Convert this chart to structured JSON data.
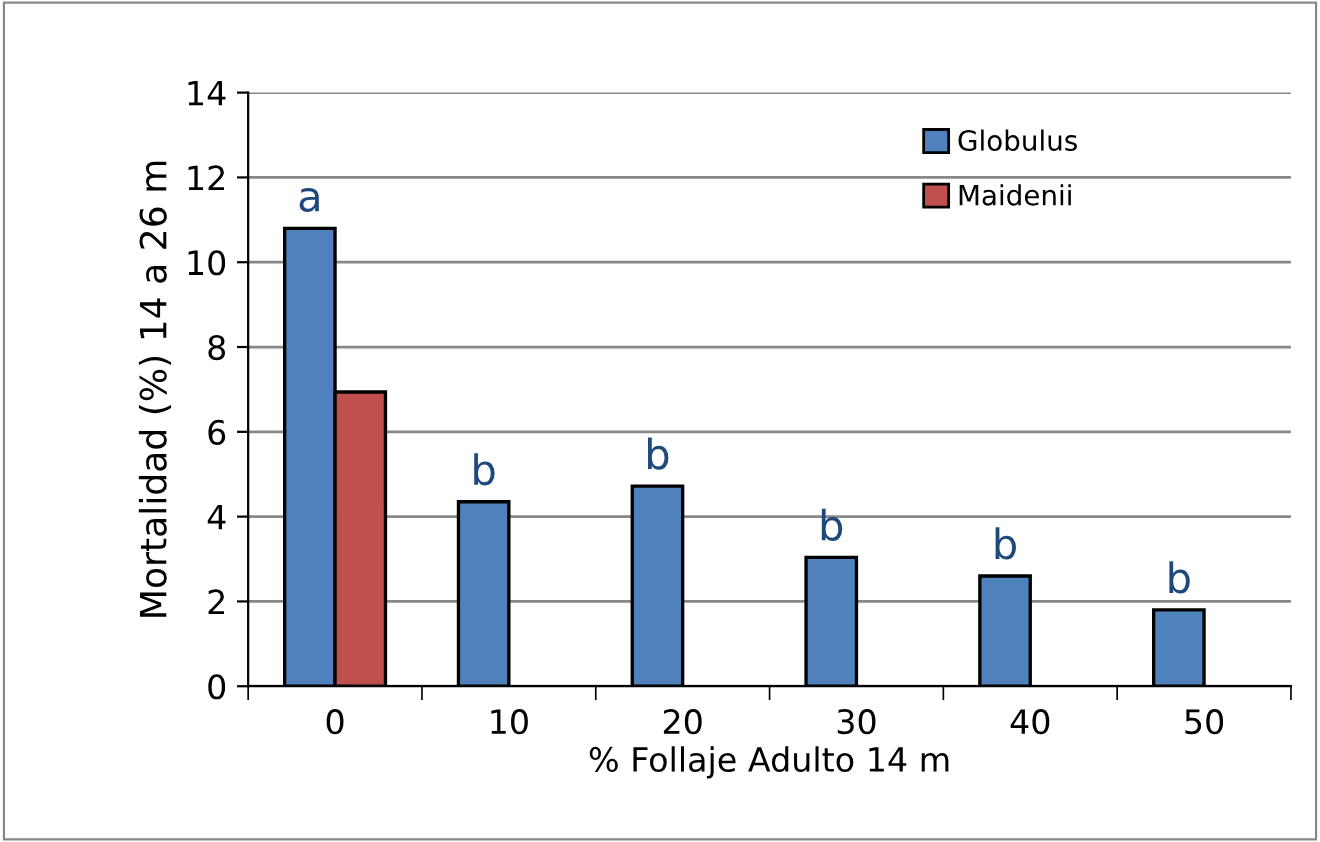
{
  "chart_data": {
    "type": "bar",
    "xlabel": "% Follaje Adulto 14 m",
    "ylabel": "Mortalidad (%) 14 a 26 m",
    "categories": [
      "0",
      "10",
      "20",
      "30",
      "40",
      "50"
    ],
    "series": [
      {
        "name": "Globulus",
        "color": "#4f81bd",
        "values": [
          10.8,
          4.35,
          4.72,
          3.04,
          2.6,
          1.8
        ]
      },
      {
        "name": "Maidenii",
        "color": "#c0504d",
        "values": [
          6.94,
          null,
          null,
          null,
          null,
          null
        ]
      }
    ],
    "ylim": [
      0,
      14
    ],
    "yticks": [
      0,
      2,
      4,
      6,
      8,
      10,
      12,
      14
    ],
    "grid": "y",
    "legend": "top right",
    "annotations": [
      {
        "text": "a",
        "x": "0",
        "y": 10.8
      },
      {
        "text": "b",
        "x": "10",
        "y": 4.35
      },
      {
        "text": "b",
        "x": "20",
        "y": 4.72
      },
      {
        "text": "b",
        "x": "30",
        "y": 3.04
      },
      {
        "text": "b",
        "x": "40",
        "y": 2.6
      },
      {
        "text": "b",
        "x": "50",
        "y": 1.8
      }
    ]
  }
}
